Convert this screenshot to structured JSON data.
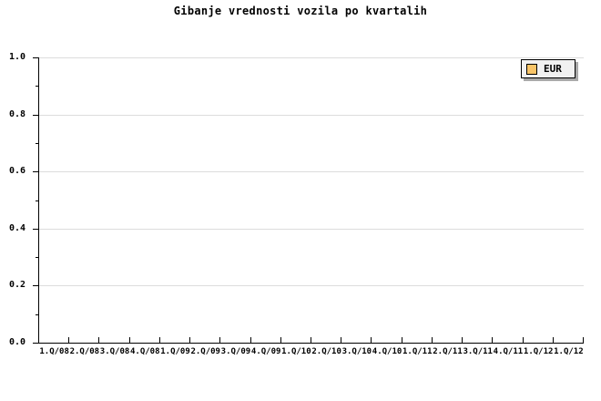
{
  "title": "Gibanje vrednosti vozila po kvartalih",
  "legend": {
    "label": "EUR"
  },
  "colors": {
    "background": "#FFFFFF",
    "text": "#000000",
    "axis": "#000000",
    "grid": "#DDDDDD",
    "legend_bg": "#F1F1F1",
    "legend_shadow": "#AAAAAA",
    "legend_swatch": "#F8C468"
  },
  "y_axis": {
    "tick_labels": [
      "1.0",
      "0.8",
      "0.6",
      "0.4",
      "0.2",
      "0.0"
    ]
  },
  "x_axis": {
    "labels": [
      "1.Q/08",
      "2.Q/08",
      "3.Q/08",
      "4.Q/08",
      "1.Q/09",
      "2.Q/09",
      "3.Q/09",
      "4.Q/09",
      "1.Q/10",
      "2.Q/10",
      "3.Q/10",
      "4.Q/10",
      "1.Q/11",
      "2.Q/11",
      "3.Q/11",
      "4.Q/11",
      "1.Q/12",
      "1.Q/12"
    ]
  },
  "chart_data": {
    "type": "line",
    "title": "Gibanje vrednosti vozila po kvartalih",
    "categories": [
      "1.Q/08",
      "2.Q/08",
      "3.Q/08",
      "4.Q/08",
      "1.Q/09",
      "2.Q/09",
      "3.Q/09",
      "4.Q/09",
      "1.Q/10",
      "2.Q/10",
      "3.Q/10",
      "4.Q/10",
      "1.Q/11",
      "2.Q/11",
      "3.Q/11",
      "4.Q/11",
      "1.Q/12",
      "1.Q/12"
    ],
    "series": [
      {
        "name": "EUR",
        "values": []
      }
    ],
    "xlabel": "",
    "ylabel": "",
    "ylim": [
      0.0,
      1.0
    ],
    "y_ticks": [
      0.0,
      0.2,
      0.4,
      0.6,
      0.8,
      1.0
    ],
    "grid": "horizontal major gridlines",
    "legend_position": "top-right",
    "plot_empty": true
  }
}
